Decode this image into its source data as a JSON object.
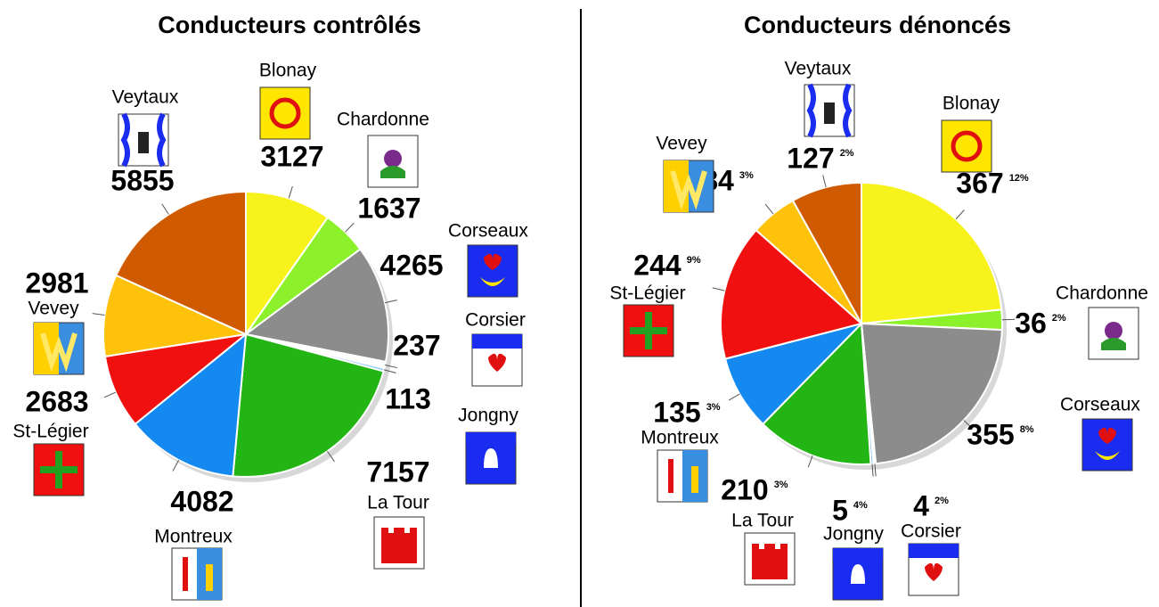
{
  "chart_data": [
    {
      "type": "pie",
      "title": "Conducteurs contrôlés",
      "categories": [
        "Blonay",
        "Chardonne",
        "Corseaux",
        "Corsier",
        "Jongny",
        "La Tour",
        "Montreux",
        "St-Légier",
        "Vevey",
        "Veytaux"
      ],
      "values": [
        3127,
        1637,
        4265,
        237,
        113,
        7157,
        4082,
        2683,
        2981,
        5855
      ],
      "colors": [
        "#f7f21c",
        "#8cf02a",
        "#8c8c8c",
        "#ffffff",
        "#86c8ff",
        "#22b514",
        "#148af0",
        "#f01010",
        "#ffc20a",
        "#d05a00"
      ]
    },
    {
      "type": "pie",
      "title": "Conducteurs dénoncés",
      "categories": [
        "Blonay",
        "Chardonne",
        "Corseaux",
        "Corsier",
        "Jongny",
        "La Tour",
        "Montreux",
        "St-Légier",
        "Vevey",
        "Veytaux"
      ],
      "values": [
        367,
        36,
        355,
        4,
        5,
        210,
        135,
        244,
        84,
        127
      ],
      "percent_labels": [
        "12%",
        "2%",
        "8%",
        "2%",
        "4%",
        "3%",
        "3%",
        "9%",
        "3%",
        "2%"
      ],
      "colors": [
        "#f7f21c",
        "#8cf02a",
        "#8c8c8c",
        "#ffffff",
        "#86c8ff",
        "#22b514",
        "#148af0",
        "#f01010",
        "#ffc20a",
        "#d05a00"
      ]
    }
  ]
}
